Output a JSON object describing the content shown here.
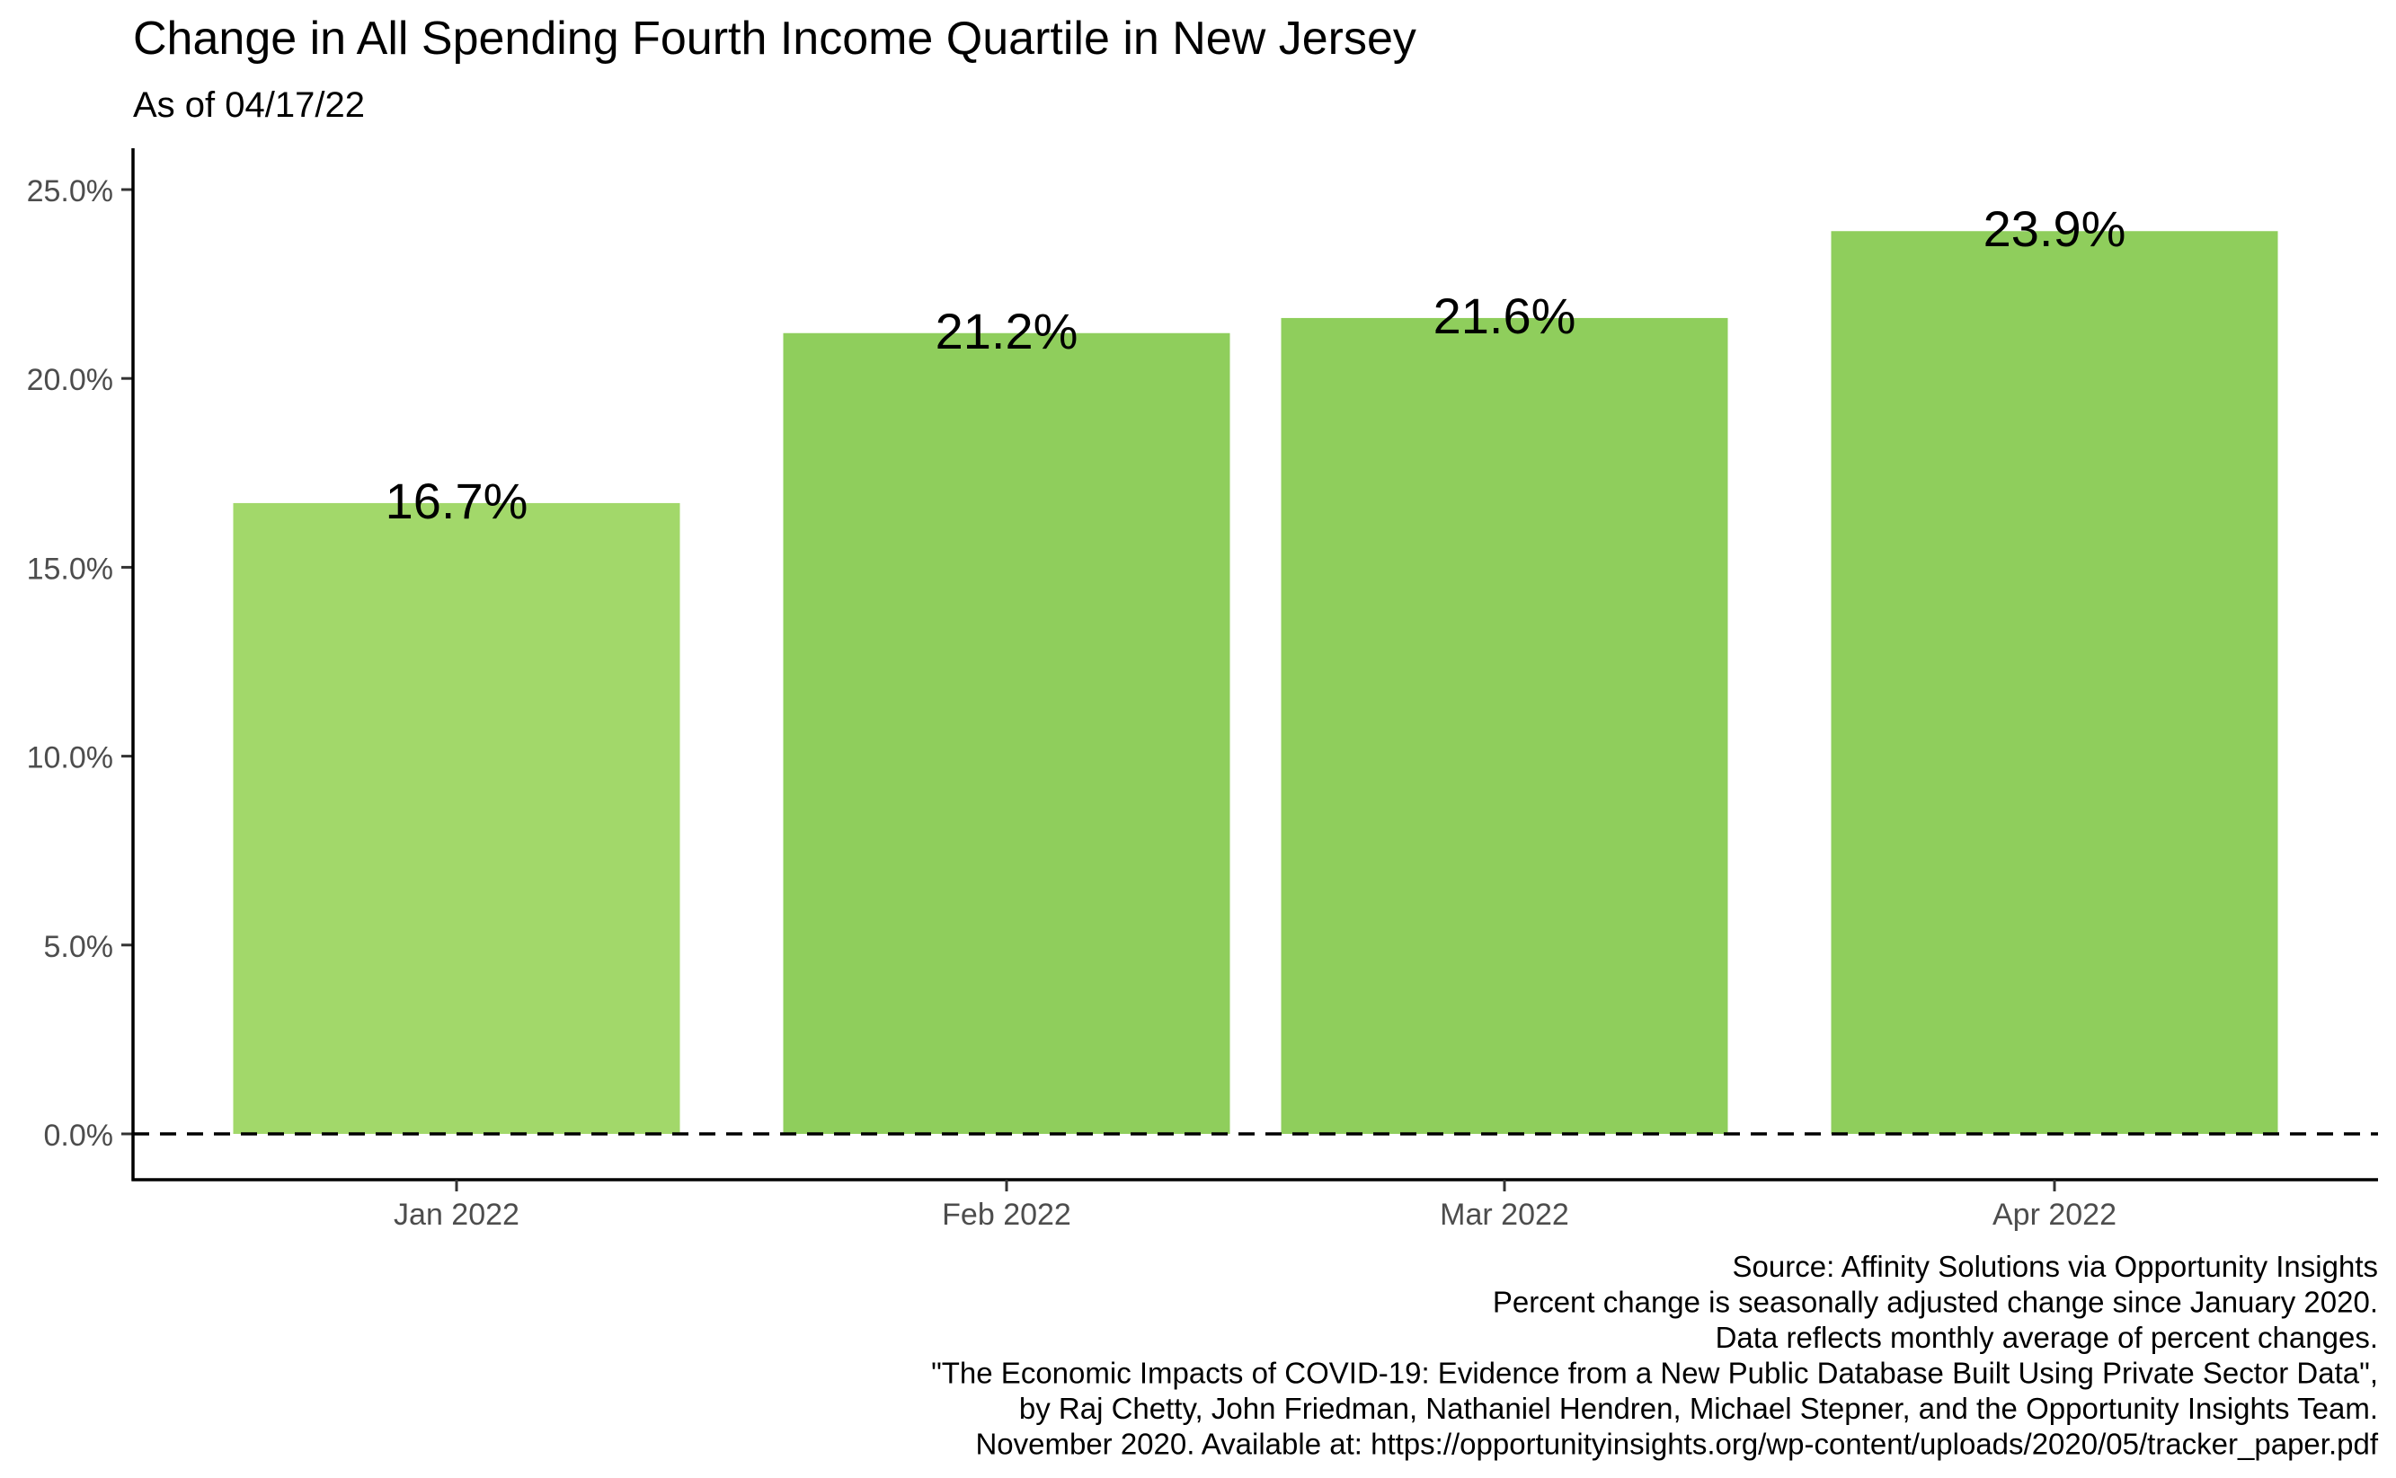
{
  "chart_data": {
    "type": "bar",
    "title": "Change in All Spending Fourth Income Quartile in New Jersey",
    "subtitle": "As of 04/17/22",
    "xlabel": "",
    "ylabel": "",
    "categories": [
      "Jan 2022",
      "Feb 2022",
      "Mar 2022",
      "Apr 2022"
    ],
    "values": [
      16.7,
      21.2,
      21.6,
      23.9
    ],
    "data_labels": [
      "16.7%",
      "21.2%",
      "21.6%",
      "23.9%"
    ],
    "bar_colors": [
      "#a2d86a",
      "#8fce5c",
      "#8fce5c",
      "#8fce5c"
    ],
    "ylim": [
      0,
      26.2
    ],
    "y_ticks": [
      0,
      5,
      10,
      15,
      20,
      25
    ],
    "y_tick_labels": [
      "0.0%",
      "5.0%",
      "10.0%",
      "15.0%",
      "20.0%",
      "25.0%"
    ],
    "reference_line": {
      "value": 0,
      "style": "dashed"
    },
    "grid": false,
    "legend": "none",
    "caption": [
      "Source: Affinity Solutions via Opportunity Insights",
      "Percent change is seasonally adjusted change since January 2020.",
      "Data reflects monthly average of percent changes.",
      "\"The Economic Impacts of COVID-19: Evidence from a New Public Database Built Using Private Sector Data\",",
      "by Raj Chetty, John Friedman, Nathaniel Hendren, Michael Stepner, and the Opportunity Insights Team.",
      "November 2020. Available at: https://opportunityinsights.org/wp-content/uploads/2020/05/tracker_paper.pdf"
    ]
  }
}
